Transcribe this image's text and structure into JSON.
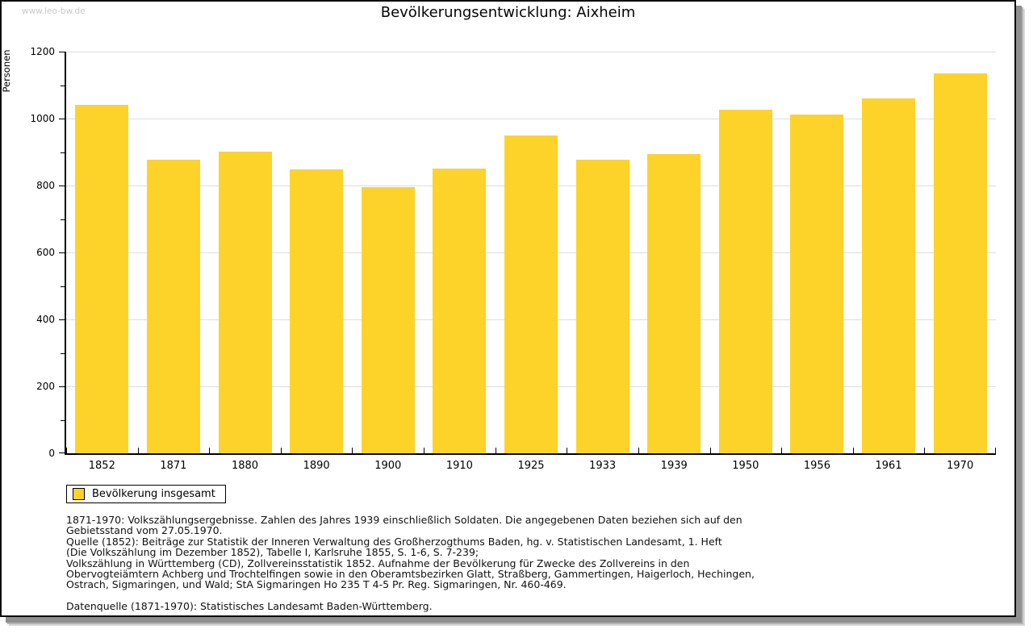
{
  "watermark": "www.leo-bw.de",
  "title": "Bevölkerungsentwicklung: Aixheim",
  "chart_data": {
    "type": "bar",
    "title": "Bevölkerungsentwicklung: Aixheim",
    "xlabel": "",
    "ylabel": "Personen",
    "categories": [
      "1852",
      "1871",
      "1880",
      "1890",
      "1900",
      "1910",
      "1925",
      "1933",
      "1939",
      "1950",
      "1956",
      "1961",
      "1970"
    ],
    "values": [
      1041,
      876,
      902,
      849,
      796,
      851,
      949,
      876,
      893,
      1027,
      1013,
      1061,
      1135
    ],
    "ylim": [
      0,
      1200
    ],
    "ytick_step": 200,
    "ytick_minor_step": 100,
    "grid": true,
    "legend_position": "bottom-left",
    "legend_label": "Bevölkerung insgesamt",
    "bar_color": "#FDD329"
  },
  "colors": {
    "bar": "#FDD329",
    "gridline": "#dddddd",
    "axis": "#000000",
    "watermark": "#c9c9c9",
    "frame_border": "#0a0a0a"
  },
  "footnotes": {
    "source_lines": [
      "1871-1970: Volkszählungsergebnisse. Zahlen des Jahres 1939 einschließlich Soldaten. Die angegebenen Daten beziehen sich auf den",
      "Gebietsstand vom 27.05.1970.",
      "Quelle (1852): Beiträge zur Statistik der Inneren Verwaltung des Großherzogthums Baden, hg. v. Statistischen Landesamt, 1. Heft",
      "(Die Volkszählung im Dezember 1852), Tabelle I, Karlsruhe 1855, S. 1-6, S. 7-239;",
      "Volkszählung in Württemberg (CD), Zollvereinsstatistik 1852. Aufnahme der Bevölkerung für Zwecke des Zollvereins in den",
      "Obervogteiämtern Achberg und Trochtelfingen sowie in den Oberamtsbezirken Glatt, Straßberg, Gammertingen, Haigerloch, Hechingen,",
      "Ostrach, Sigmaringen, und Wald; StA Sigmaringen Ho 235 T 4-5 Pr. Reg. Sigmaringen, Nr. 460-469."
    ],
    "datasource": "Datenquelle (1871-1970): Statistisches Landesamt Baden-Württemberg."
  }
}
